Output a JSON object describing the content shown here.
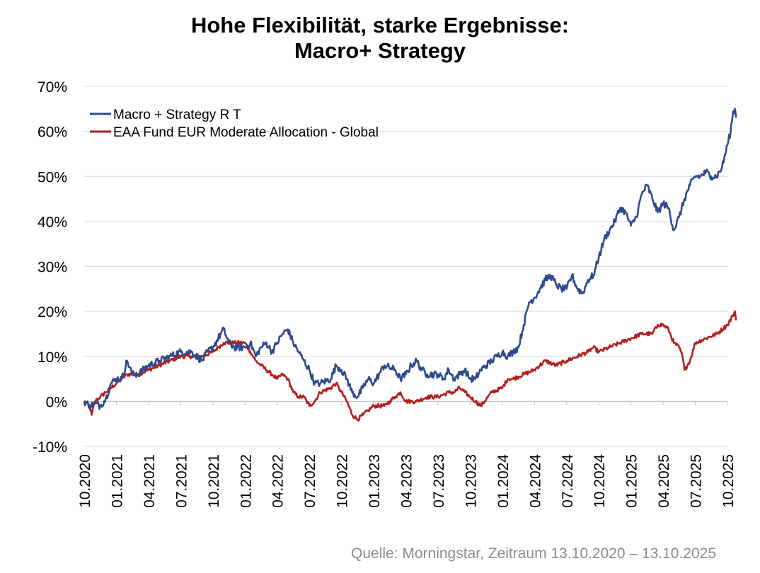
{
  "chart_data": {
    "type": "line",
    "title_line1": "Hohe Flexibilität, starke Ergebnisse:",
    "title_line2": "Macro+ Strategy",
    "xlabel": "",
    "ylabel": "",
    "ylim": [
      -10,
      70
    ],
    "yticks": [
      -10,
      0,
      10,
      20,
      30,
      40,
      50,
      60,
      70
    ],
    "ytick_labels": [
      "-10%",
      "0%",
      "10%",
      "20%",
      "30%",
      "40%",
      "50%",
      "60%",
      "70%"
    ],
    "xlim": [
      0,
      60
    ],
    "xticks": [
      0,
      3,
      6,
      9,
      12,
      15,
      18,
      21,
      24,
      27,
      30,
      33,
      36,
      39,
      42,
      45,
      48,
      51,
      54,
      57,
      60
    ],
    "xtick_labels": [
      "10.2020",
      "01.2021",
      "04.2021",
      "07.2021",
      "10.2021",
      "01.2022",
      "04.2022",
      "07.2022",
      "10.2022",
      "01.2023",
      "04.2023",
      "07.2023",
      "10.2023",
      "01.2024",
      "04.2024",
      "07.2024",
      "10.2024",
      "01.2025",
      "04.2025",
      "07.2025",
      "10.2025"
    ],
    "grid": "horizontal",
    "legend_position": "top-left",
    "series": [
      {
        "name": "Macro + Strategy R T",
        "color": "#2e4a8e",
        "points": [
          [
            0,
            0
          ],
          [
            0.5,
            -1
          ],
          [
            1,
            -0.5
          ],
          [
            1.5,
            -1
          ],
          [
            2,
            0.5
          ],
          [
            2.5,
            4
          ],
          [
            3,
            5
          ],
          [
            3.5,
            5
          ],
          [
            4,
            9
          ],
          [
            4.5,
            6
          ],
          [
            5,
            6
          ],
          [
            6,
            8
          ],
          [
            7,
            9
          ],
          [
            8,
            10
          ],
          [
            9,
            11
          ],
          [
            10,
            11
          ],
          [
            11,
            9
          ],
          [
            11.5,
            11
          ],
          [
            12,
            12
          ],
          [
            12.5,
            14
          ],
          [
            13,
            16
          ],
          [
            13.5,
            13
          ],
          [
            14,
            12
          ],
          [
            15,
            12
          ],
          [
            15.5,
            13
          ],
          [
            16,
            10
          ],
          [
            16.5,
            12
          ],
          [
            17,
            13
          ],
          [
            17.5,
            11
          ],
          [
            18,
            13
          ],
          [
            18.5,
            15
          ],
          [
            19,
            16
          ],
          [
            19.5,
            13
          ],
          [
            20,
            11
          ],
          [
            20.5,
            9
          ],
          [
            21,
            7
          ],
          [
            21.5,
            4
          ],
          [
            22,
            4
          ],
          [
            23,
            5
          ],
          [
            23.5,
            8
          ],
          [
            24,
            7
          ],
          [
            24.5,
            5
          ],
          [
            25,
            2
          ],
          [
            25.5,
            1
          ],
          [
            26,
            3
          ],
          [
            26.5,
            5
          ],
          [
            27,
            4
          ],
          [
            27.5,
            6
          ],
          [
            28,
            8
          ],
          [
            29,
            7
          ],
          [
            29.5,
            5
          ],
          [
            30,
            6
          ],
          [
            30.5,
            8
          ],
          [
            31,
            9
          ],
          [
            31.5,
            7
          ],
          [
            32,
            6
          ],
          [
            33,
            6
          ],
          [
            33.5,
            5
          ],
          [
            34,
            7
          ],
          [
            34.5,
            5
          ],
          [
            35,
            6
          ],
          [
            35.5,
            7
          ],
          [
            36,
            5
          ],
          [
            36.5,
            5
          ],
          [
            37,
            7
          ],
          [
            38,
            9
          ],
          [
            38.5,
            10
          ],
          [
            39,
            11
          ],
          [
            39.5,
            10
          ],
          [
            40,
            11
          ],
          [
            40.5,
            12
          ],
          [
            41,
            17
          ],
          [
            41.5,
            22
          ],
          [
            42,
            23
          ],
          [
            42.5,
            25
          ],
          [
            43,
            27
          ],
          [
            43.5,
            28
          ],
          [
            44,
            26
          ],
          [
            44.5,
            25
          ],
          [
            45,
            25
          ],
          [
            45.5,
            28
          ],
          [
            46,
            25
          ],
          [
            46.5,
            24
          ],
          [
            47,
            27
          ],
          [
            47.5,
            28
          ],
          [
            48,
            32
          ],
          [
            48.5,
            36
          ],
          [
            49,
            38
          ],
          [
            49.5,
            40
          ],
          [
            50,
            43
          ],
          [
            50.5,
            42
          ],
          [
            51,
            39
          ],
          [
            51.5,
            41
          ],
          [
            52,
            46
          ],
          [
            52.5,
            48
          ],
          [
            53,
            45
          ],
          [
            53.5,
            42
          ],
          [
            54,
            44
          ],
          [
            54.5,
            43
          ],
          [
            55,
            38
          ],
          [
            55.5,
            41
          ],
          [
            56,
            45
          ],
          [
            56.5,
            48
          ],
          [
            57,
            50
          ],
          [
            57.5,
            50
          ],
          [
            58,
            51
          ],
          [
            58.5,
            50
          ],
          [
            59,
            50
          ],
          [
            59.5,
            52
          ],
          [
            60,
            57
          ],
          [
            60.3,
            60
          ],
          [
            60.5,
            64
          ],
          [
            60.7,
            65
          ],
          [
            60.8,
            63
          ]
        ]
      },
      {
        "name": "EAA Fund EUR Moderate Allocation - Global",
        "color": "#b31f1f",
        "points": [
          [
            0,
            0
          ],
          [
            0.5,
            -1
          ],
          [
            0.7,
            -3
          ],
          [
            1,
            0
          ],
          [
            1.5,
            1
          ],
          [
            2,
            2
          ],
          [
            2.5,
            3
          ],
          [
            3,
            4
          ],
          [
            3.5,
            5
          ],
          [
            4,
            6
          ],
          [
            4.5,
            6
          ],
          [
            5,
            6
          ],
          [
            6,
            7
          ],
          [
            7,
            8
          ],
          [
            8,
            9
          ],
          [
            9,
            10
          ],
          [
            10,
            10
          ],
          [
            11,
            10
          ],
          [
            12,
            11
          ],
          [
            12.5,
            12
          ],
          [
            13,
            13
          ],
          [
            14,
            13
          ],
          [
            15,
            13
          ],
          [
            15.5,
            11
          ],
          [
            16,
            9
          ],
          [
            16.5,
            8
          ],
          [
            17,
            7
          ],
          [
            17.5,
            6
          ],
          [
            18,
            5
          ],
          [
            18.5,
            6
          ],
          [
            19,
            5
          ],
          [
            19.5,
            2
          ],
          [
            20,
            1
          ],
          [
            20.5,
            1
          ],
          [
            21,
            -1
          ],
          [
            21.5,
            0
          ],
          [
            22,
            2
          ],
          [
            23,
            3
          ],
          [
            23.5,
            4
          ],
          [
            24,
            2
          ],
          [
            24.5,
            0
          ],
          [
            25,
            -3
          ],
          [
            25.5,
            -4
          ],
          [
            26,
            -3
          ],
          [
            26.5,
            -2
          ],
          [
            27,
            -1
          ],
          [
            28,
            -1
          ],
          [
            28.5,
            0
          ],
          [
            29,
            1
          ],
          [
            29.5,
            2
          ],
          [
            30,
            0
          ],
          [
            30.5,
            0
          ],
          [
            31,
            0
          ],
          [
            32,
            1
          ],
          [
            33,
            1
          ],
          [
            34,
            2
          ],
          [
            34.5,
            2
          ],
          [
            35,
            3
          ],
          [
            35.5,
            2
          ],
          [
            36,
            1
          ],
          [
            36.5,
            0
          ],
          [
            37,
            -1
          ],
          [
            38,
            2
          ],
          [
            39,
            3
          ],
          [
            39.5,
            5
          ],
          [
            40,
            5
          ],
          [
            41,
            6
          ],
          [
            42,
            7
          ],
          [
            43,
            9
          ],
          [
            44,
            8
          ],
          [
            45,
            9
          ],
          [
            46,
            10
          ],
          [
            47,
            11
          ],
          [
            47.5,
            12
          ],
          [
            48,
            11
          ],
          [
            49,
            12
          ],
          [
            50,
            13
          ],
          [
            51,
            14
          ],
          [
            52,
            15
          ],
          [
            53,
            15
          ],
          [
            53.5,
            17
          ],
          [
            54,
            17
          ],
          [
            54.5,
            16
          ],
          [
            55,
            13
          ],
          [
            55.5,
            12
          ],
          [
            55.8,
            10
          ],
          [
            56,
            7
          ],
          [
            56.5,
            9
          ],
          [
            57,
            13
          ],
          [
            58,
            14
          ],
          [
            59,
            15
          ],
          [
            60,
            17
          ],
          [
            60.5,
            19
          ],
          [
            60.7,
            20
          ],
          [
            60.8,
            18
          ]
        ]
      }
    ]
  },
  "source_note": "Quelle: Morningstar, Zeitraum 13.10.2020 – 13.10.2025"
}
